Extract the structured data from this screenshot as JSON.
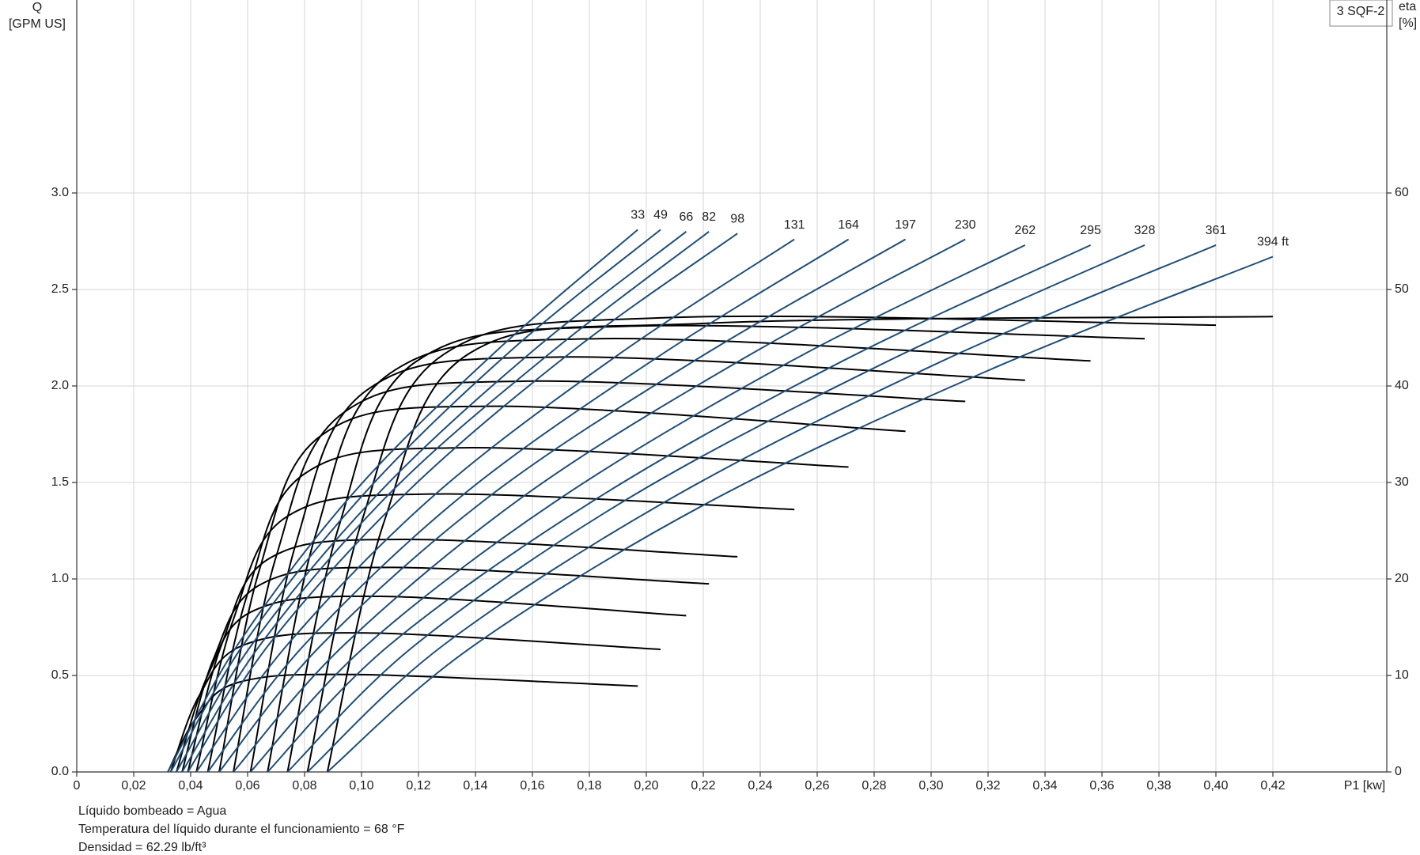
{
  "chart_data": {
    "type": "line",
    "title": "3 SQF-2",
    "y_label": [
      "Q",
      "[GPM US]"
    ],
    "y2_label": [
      "eta",
      "[%]"
    ],
    "x_label": "P1 [kw]",
    "notes": [
      "Líquido bombeado = Agua",
      "Temperatura del líquido durante el funcionamiento = 68 °F",
      "Densidad = 62.29 lb/ft³"
    ],
    "xlim": [
      0,
      0.46
    ],
    "xticks": [
      0,
      {
        "value": 0.02,
        "label": "0,02"
      },
      {
        "value": 0.04,
        "label": "0,04"
      },
      {
        "value": 0.06,
        "label": "0,06"
      },
      {
        "value": 0.08,
        "label": "0,08"
      },
      {
        "value": 0.1,
        "label": "0,10"
      },
      {
        "value": 0.12,
        "label": "0,12"
      },
      {
        "value": 0.14,
        "label": "0,14"
      },
      {
        "value": 0.16,
        "label": "0,16"
      },
      {
        "value": 0.18,
        "label": "0,18"
      },
      {
        "value": 0.2,
        "label": "0,20"
      },
      {
        "value": 0.22,
        "label": "0,22"
      },
      {
        "value": 0.24,
        "label": "0,24"
      },
      {
        "value": 0.26,
        "label": "0,26"
      },
      {
        "value": 0.28,
        "label": "0,28"
      },
      {
        "value": 0.3,
        "label": "0,30"
      },
      {
        "value": 0.32,
        "label": "0,32"
      },
      {
        "value": 0.34,
        "label": "0,34"
      },
      {
        "value": 0.36,
        "label": "0,36"
      },
      {
        "value": 0.38,
        "label": "0,38"
      },
      {
        "value": 0.4,
        "label": "0,40"
      },
      {
        "value": 0.42,
        "label": "0,42"
      }
    ],
    "ylim": [
      0,
      4
    ],
    "yticks": [
      {
        "value": 0,
        "label": "0.0"
      },
      {
        "value": 0.5,
        "label": "0.5"
      },
      {
        "value": 1,
        "label": "1.0"
      },
      {
        "value": 1.5,
        "label": "1.5"
      },
      {
        "value": 2,
        "label": "2.0"
      },
      {
        "value": 2.5,
        "label": "2.5"
      },
      {
        "value": 3,
        "label": "3.0"
      }
    ],
    "y2lim": [
      0,
      80
    ],
    "y2ticks": [
      0,
      10,
      20,
      30,
      40,
      50,
      60
    ],
    "grid": true,
    "series": [
      {
        "name": "33",
        "color": "#1f4e79",
        "x": [
          0.032,
          0.057,
          0.098,
          0.148,
          0.197
        ],
        "values": [
          0,
          0.67,
          1.46,
          2.19,
          2.81
        ]
      },
      {
        "name": "49",
        "color": "#1f4e79",
        "x": [
          0.033,
          0.059,
          0.102,
          0.153,
          0.205
        ],
        "values": [
          0,
          0.67,
          1.46,
          2.19,
          2.81
        ]
      },
      {
        "name": "66",
        "color": "#1f4e79",
        "x": [
          0.035,
          0.062,
          0.107,
          0.16,
          0.214
        ],
        "values": [
          0,
          0.67,
          1.46,
          2.18,
          2.8
        ]
      },
      {
        "name": "82",
        "color": "#1f4e79",
        "x": [
          0.037,
          0.065,
          0.111,
          0.167,
          0.222
        ],
        "values": [
          0,
          0.67,
          1.46,
          2.18,
          2.8
        ]
      },
      {
        "name": "98",
        "color": "#1f4e79",
        "x": [
          0.039,
          0.068,
          0.116,
          0.174,
          0.232
        ],
        "values": [
          0,
          0.67,
          1.45,
          2.18,
          2.79
        ]
      },
      {
        "name": "131",
        "color": "#1f4e79",
        "x": [
          0.042,
          0.074,
          0.126,
          0.189,
          0.252
        ],
        "values": [
          0,
          0.66,
          1.44,
          2.15,
          2.76
        ]
      },
      {
        "name": "164",
        "color": "#1f4e79",
        "x": [
          0.046,
          0.08,
          0.136,
          0.204,
          0.271
        ],
        "values": [
          0,
          0.66,
          1.44,
          2.15,
          2.76
        ]
      },
      {
        "name": "197",
        "color": "#1f4e79",
        "x": [
          0.05,
          0.086,
          0.146,
          0.219,
          0.291
        ],
        "values": [
          0,
          0.66,
          1.44,
          2.15,
          2.76
        ]
      },
      {
        "name": "230",
        "color": "#1f4e79",
        "x": [
          0.055,
          0.094,
          0.158,
          0.235,
          0.312
        ],
        "values": [
          0,
          0.66,
          1.44,
          2.15,
          2.76
        ]
      },
      {
        "name": "262",
        "color": "#1f4e79",
        "x": [
          0.061,
          0.102,
          0.17,
          0.251,
          0.333
        ],
        "values": [
          0,
          0.66,
          1.42,
          2.13,
          2.73
        ]
      },
      {
        "name": "295",
        "color": "#1f4e79",
        "x": [
          0.067,
          0.11,
          0.183,
          0.269,
          0.356
        ],
        "values": [
          0,
          0.66,
          1.42,
          2.13,
          2.73
        ]
      },
      {
        "name": "328",
        "color": "#1f4e79",
        "x": [
          0.074,
          0.119,
          0.194,
          0.285,
          0.375
        ],
        "values": [
          0,
          0.66,
          1.42,
          2.13,
          2.73
        ]
      },
      {
        "name": "361",
        "color": "#1f4e79",
        "x": [
          0.081,
          0.129,
          0.209,
          0.304,
          0.4
        ],
        "values": [
          0,
          0.66,
          1.42,
          2.13,
          2.73
        ]
      },
      {
        "name": "394 ft",
        "color": "#1f4e79",
        "x": [
          0.088,
          0.138,
          0.221,
          0.32,
          0.42
        ],
        "values": [
          0,
          0.64,
          1.39,
          2.08,
          2.67
        ]
      }
    ],
    "efficiency": [
      {
        "axis": "y2",
        "color": "#000000",
        "x": [
          0.032,
          0.042,
          0.057,
          0.098,
          0.197
        ],
        "values": [
          0,
          5.6,
          9.3,
          10.1,
          8.9
        ]
      },
      {
        "axis": "y2",
        "color": "#000000",
        "x": [
          0.033,
          0.043,
          0.059,
          0.102,
          0.205
        ],
        "values": [
          0,
          7.9,
          13.2,
          14.4,
          12.7
        ]
      },
      {
        "axis": "y2",
        "color": "#000000",
        "x": [
          0.035,
          0.046,
          0.062,
          0.107,
          0.214
        ],
        "values": [
          0,
          10.0,
          16.7,
          18.2,
          16.2
        ]
      },
      {
        "axis": "y2",
        "color": "#000000",
        "x": [
          0.037,
          0.048,
          0.065,
          0.111,
          0.222
        ],
        "values": [
          0,
          11.7,
          19.5,
          21.2,
          19.5
        ]
      },
      {
        "axis": "y2",
        "color": "#000000",
        "x": [
          0.039,
          0.051,
          0.068,
          0.116,
          0.232
        ],
        "values": [
          0,
          13.3,
          22.2,
          24.1,
          22.3
        ]
      },
      {
        "axis": "y2",
        "color": "#000000",
        "x": [
          0.042,
          0.055,
          0.074,
          0.126,
          0.252
        ],
        "values": [
          0,
          15.8,
          26.5,
          28.8,
          27.2
        ]
      },
      {
        "axis": "y2",
        "color": "#000000",
        "x": [
          0.046,
          0.06,
          0.08,
          0.136,
          0.271
        ],
        "values": [
          0,
          18.5,
          30.9,
          33.6,
          31.6
        ]
      },
      {
        "axis": "y2",
        "color": "#000000",
        "x": [
          0.05,
          0.064,
          0.086,
          0.146,
          0.291
        ],
        "values": [
          0,
          20.8,
          34.9,
          37.9,
          35.3
        ]
      },
      {
        "axis": "y2",
        "color": "#000000",
        "x": [
          0.055,
          0.07,
          0.094,
          0.158,
          0.312
        ],
        "values": [
          0,
          22.3,
          37.3,
          40.5,
          38.4
        ]
      },
      {
        "axis": "y2",
        "color": "#000000",
        "x": [
          0.061,
          0.077,
          0.102,
          0.17,
          0.333
        ],
        "values": [
          0,
          23.7,
          39.6,
          43.0,
          40.6
        ]
      },
      {
        "axis": "y2",
        "color": "#000000",
        "x": [
          0.067,
          0.084,
          0.11,
          0.183,
          0.356
        ],
        "values": [
          0,
          24.7,
          41.3,
          44.9,
          42.6
        ]
      },
      {
        "axis": "y2",
        "color": "#000000",
        "x": [
          0.074,
          0.092,
          0.119,
          0.194,
          0.375
        ],
        "values": [
          0,
          25.4,
          42.5,
          46.2,
          44.9
        ]
      },
      {
        "axis": "y2",
        "color": "#000000",
        "x": [
          0.081,
          0.1,
          0.129,
          0.209,
          0.4
        ],
        "values": [
          0,
          25.9,
          43.3,
          47.1,
          46.3
        ]
      },
      {
        "axis": "y2",
        "color": "#000000",
        "x": [
          0.088,
          0.108,
          0.138,
          0.221,
          0.42
        ],
        "values": [
          0,
          26.0,
          43.4,
          46.5,
          47.2
        ]
      }
    ]
  }
}
